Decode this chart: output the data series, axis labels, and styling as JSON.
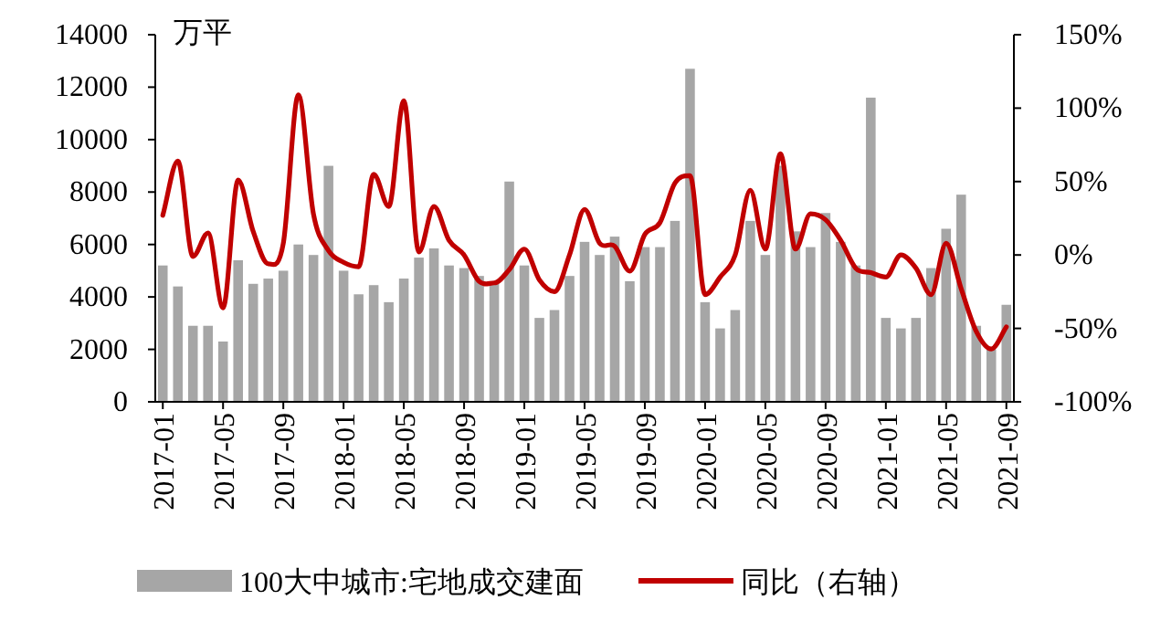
{
  "chart_data": {
    "type": "bar",
    "ylabel": "万平",
    "categories": [
      "2017-01",
      null,
      null,
      null,
      "2017-05",
      null,
      null,
      null,
      "2017-09",
      null,
      null,
      null,
      "2018-01",
      null,
      null,
      null,
      "2018-05",
      null,
      null,
      null,
      "2018-09",
      null,
      null,
      null,
      "2019-01",
      null,
      null,
      null,
      "2019-05",
      null,
      null,
      null,
      "2019-09",
      null,
      null,
      null,
      "2020-01",
      null,
      null,
      null,
      "2020-05",
      null,
      null,
      null,
      "2020-09",
      null,
      null,
      null,
      "2021-01",
      null,
      null,
      null,
      "2021-05",
      null,
      null,
      null,
      "2021-09"
    ],
    "series": [
      {
        "name": "100大中城市:宅地成交建面",
        "color": "#a6a6a6",
        "values": [
          5200,
          4400,
          2900,
          2900,
          2300,
          5400,
          4500,
          4700,
          5000,
          6000,
          5600,
          9000,
          5000,
          4100,
          4450,
          3800,
          4700,
          5500,
          5850,
          5200,
          5100,
          4800,
          4500,
          8400,
          5200,
          3200,
          3500,
          4800,
          6100,
          5600,
          6300,
          4600,
          5900,
          5900,
          6900,
          12700,
          3800,
          2800,
          3500,
          6900,
          5600,
          9000,
          6500,
          5900,
          7200,
          6100,
          5200,
          11600,
          3200,
          2800,
          3200,
          5100,
          6600,
          7900,
          2900,
          2000,
          3700
        ]
      },
      {
        "name": "同比（右轴）",
        "type": "line",
        "axis": "y2",
        "color": "#c00000",
        "values": [
          27,
          64,
          -1,
          15,
          -36,
          51,
          16,
          -6,
          8,
          109,
          28,
          3,
          -5,
          -8,
          55,
          33,
          105,
          2,
          33,
          10,
          0,
          -18,
          -19,
          -10,
          4,
          -17,
          -25,
          0,
          31,
          8,
          6,
          -11,
          14,
          22,
          49,
          54,
          -27,
          -15,
          0,
          44,
          4,
          69,
          4,
          28,
          24,
          10,
          -9,
          -12,
          -15,
          0,
          -9,
          -27,
          8,
          -23,
          -52,
          -64,
          -49
        ]
      }
    ],
    "ylim": [
      0,
      14000
    ],
    "yticks": [
      0,
      2000,
      4000,
      6000,
      8000,
      10000,
      12000,
      14000
    ],
    "y2lim": [
      -100,
      150
    ],
    "y2ticks": [
      {
        "value": -100,
        "label": "-100%"
      },
      {
        "value": -50,
        "label": "-50%"
      },
      {
        "value": 0,
        "label": "0%"
      },
      {
        "value": 50,
        "label": "50%"
      },
      {
        "value": 100,
        "label": "100%"
      },
      {
        "value": 150,
        "label": "150%"
      }
    ],
    "legend": "bottom",
    "grid": false
  }
}
